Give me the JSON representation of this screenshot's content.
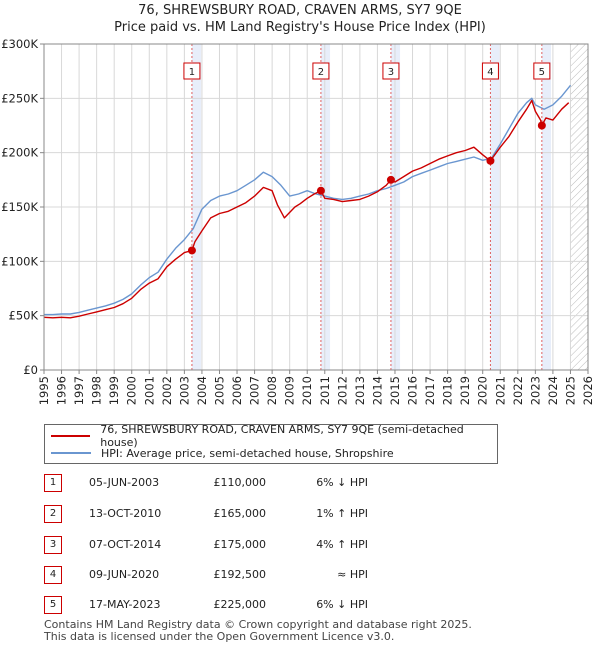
{
  "title_line1": "76, SHREWSBURY ROAD, CRAVEN ARMS, SY7 9QE",
  "title_line2": "Price paid vs. HM Land Registry's House Price Index (HPI)",
  "colors": {
    "property": "#cc0000",
    "hpi": "#6a96d0",
    "shade": "#e8eefa",
    "grid": "#d8d8d8",
    "marker_line": "#e06060"
  },
  "chart_data": {
    "type": "line",
    "title": "76, SHREWSBURY ROAD, CRAVEN ARMS, SY7 9QE — Price paid vs. HM Land Registry's House Price Index (HPI)",
    "xlim": [
      1995,
      2026
    ],
    "ylim": [
      0,
      300000
    ],
    "x_ticks": [
      "1995",
      "1996",
      "1997",
      "1998",
      "1999",
      "2000",
      "2001",
      "2002",
      "2003",
      "2004",
      "2005",
      "2006",
      "2007",
      "2008",
      "2009",
      "2010",
      "2011",
      "2012",
      "2013",
      "2014",
      "2015",
      "2016",
      "2017",
      "2018",
      "2019",
      "2020",
      "2021",
      "2022",
      "2023",
      "2024",
      "2025",
      "2026"
    ],
    "y_ticks": [
      {
        "value": 0,
        "label": "£0"
      },
      {
        "value": 50000,
        "label": "£50K"
      },
      {
        "value": 100000,
        "label": "£100K"
      },
      {
        "value": 150000,
        "label": "£150K"
      },
      {
        "value": 200000,
        "label": "£200K"
      },
      {
        "value": 250000,
        "label": "£250K"
      },
      {
        "value": 300000,
        "label": "£300K"
      }
    ],
    "grid": true,
    "shaded_spans": [
      [
        2003.43,
        2003.95
      ],
      [
        2010.78,
        2011.3
      ],
      [
        2014.77,
        2015.29
      ],
      [
        2020.44,
        2020.96
      ],
      [
        2023.37,
        2023.89
      ]
    ],
    "hatch_span": [
      2025.0,
      2026
    ],
    "series": [
      {
        "name": "76, SHREWSBURY ROAD, CRAVEN ARMS, SY7 9QE (semi-detached house)",
        "x": [
          1995.0,
          1995.5,
          1996.0,
          1996.5,
          1997.0,
          1997.5,
          1998.0,
          1998.5,
          1999.0,
          1999.5,
          2000.0,
          2000.5,
          2001.0,
          2001.5,
          2002.0,
          2002.5,
          2003.0,
          2003.43,
          2003.6,
          2004.0,
          2004.5,
          2005.0,
          2005.5,
          2006.0,
          2006.5,
          2007.0,
          2007.5,
          2008.0,
          2008.3,
          2008.7,
          2009.0,
          2009.3,
          2009.6,
          2010.0,
          2010.4,
          2010.78,
          2011.0,
          2011.5,
          2012.0,
          2012.5,
          2013.0,
          2013.5,
          2014.0,
          2014.5,
          2014.77,
          2015.0,
          2015.5,
          2016.0,
          2016.5,
          2017.0,
          2017.5,
          2018.0,
          2018.5,
          2019.0,
          2019.5,
          2020.0,
          2020.44,
          2020.6,
          2021.0,
          2021.5,
          2022.0,
          2022.5,
          2022.8,
          2023.0,
          2023.3,
          2023.37,
          2023.6,
          2024.0,
          2024.5,
          2024.9
        ],
        "values": [
          48500,
          48000,
          48500,
          48000,
          49500,
          51500,
          53500,
          55500,
          57500,
          61000,
          66000,
          74000,
          80000,
          84000,
          95000,
          102000,
          108000,
          110000,
          118000,
          128000,
          140000,
          144000,
          146000,
          150000,
          154000,
          160000,
          168000,
          165000,
          152000,
          140000,
          145000,
          150000,
          153000,
          158000,
          162000,
          165000,
          158000,
          157000,
          155000,
          156000,
          157000,
          160000,
          164000,
          170000,
          175000,
          173000,
          178000,
          183000,
          186000,
          190000,
          194000,
          197000,
          200000,
          202000,
          205000,
          198000,
          192500,
          196000,
          205000,
          215000,
          228000,
          240000,
          248000,
          238000,
          230000,
          225000,
          232000,
          230000,
          240000,
          246000
        ]
      },
      {
        "name": "HPI: Average price, semi-detached house, Shropshire",
        "x": [
          1995.0,
          1995.5,
          1996.0,
          1996.5,
          1997.0,
          1997.5,
          1998.0,
          1998.5,
          1999.0,
          1999.5,
          2000.0,
          2000.5,
          2001.0,
          2001.5,
          2002.0,
          2002.5,
          2003.0,
          2003.5,
          2004.0,
          2004.5,
          2005.0,
          2005.5,
          2006.0,
          2006.5,
          2007.0,
          2007.5,
          2008.0,
          2008.5,
          2009.0,
          2009.5,
          2010.0,
          2010.5,
          2011.0,
          2011.5,
          2012.0,
          2012.5,
          2013.0,
          2013.5,
          2014.0,
          2014.5,
          2015.0,
          2015.5,
          2016.0,
          2016.5,
          2017.0,
          2017.5,
          2018.0,
          2018.5,
          2019.0,
          2019.5,
          2020.0,
          2020.5,
          2021.0,
          2021.5,
          2022.0,
          2022.5,
          2022.8,
          2023.0,
          2023.5,
          2024.0,
          2024.5,
          2025.0
        ],
        "values": [
          51000,
          51000,
          51500,
          51500,
          53000,
          55000,
          57000,
          59000,
          61500,
          65000,
          70000,
          78000,
          85000,
          90000,
          102000,
          112000,
          120000,
          130000,
          148000,
          156000,
          160000,
          162000,
          165000,
          170000,
          175000,
          182000,
          178000,
          170000,
          160000,
          162000,
          165000,
          162000,
          160000,
          158000,
          157000,
          158000,
          160000,
          162000,
          165000,
          167000,
          170000,
          173000,
          178000,
          181000,
          184000,
          187000,
          190000,
          192000,
          194000,
          196000,
          193000,
          195000,
          208000,
          222000,
          236000,
          246000,
          250000,
          244000,
          240000,
          244000,
          252000,
          262000
        ]
      }
    ],
    "transactions": [
      {
        "num": "1",
        "year": 2003.43,
        "price": 110000,
        "date": "05-JUN-2003",
        "price_label": "£110,000",
        "hpi": "6% ↓ HPI"
      },
      {
        "num": "2",
        "year": 2010.78,
        "price": 165000,
        "date": "13-OCT-2010",
        "price_label": "£165,000",
        "hpi": "1% ↑ HPI"
      },
      {
        "num": "3",
        "year": 2014.77,
        "price": 175000,
        "date": "07-OCT-2014",
        "price_label": "£175,000",
        "hpi": "4% ↑ HPI"
      },
      {
        "num": "4",
        "year": 2020.44,
        "price": 192500,
        "date": "09-JUN-2020",
        "price_label": "£192,500",
        "hpi": "≈ HPI"
      },
      {
        "num": "5",
        "year": 2023.37,
        "price": 225000,
        "date": "17-MAY-2023",
        "price_label": "£225,000",
        "hpi": "6% ↓ HPI"
      }
    ]
  },
  "legend": {
    "property_label": "76, SHREWSBURY ROAD, CRAVEN ARMS, SY7 9QE (semi-detached house)",
    "hpi_label": "HPI: Average price, semi-detached house, Shropshire"
  },
  "footer": {
    "line1": "Contains HM Land Registry data © Crown copyright and database right 2025.",
    "line2": "This data is licensed under the Open Government Licence v3.0."
  }
}
